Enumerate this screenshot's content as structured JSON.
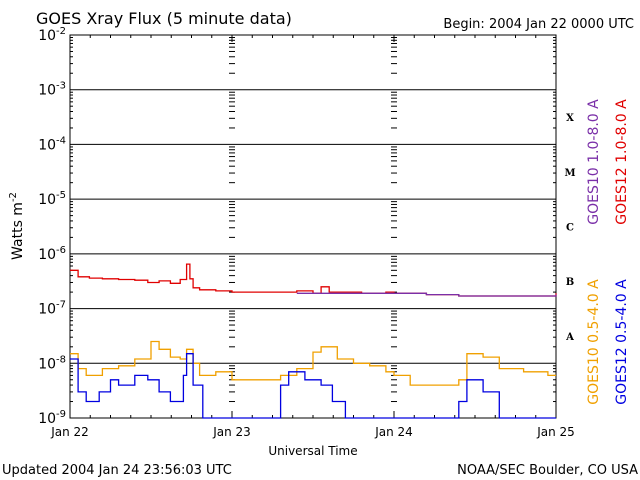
{
  "chart_data": {
    "type": "line",
    "title": "GOES Xray Flux (5 minute data)",
    "begin_label": "Begin:  2004 Jan 22 0000 UTC",
    "xlabel": "Universal Time",
    "ylabel": "Watts m",
    "ylabel_exp": "-2",
    "y_scale": "log",
    "ylim": [
      1e-09,
      0.01
    ],
    "xlim": [
      "2004-01-22",
      "2004-01-25"
    ],
    "y_ticks": [
      {
        "base": "10",
        "exp": "-2"
      },
      {
        "base": "10",
        "exp": "-3"
      },
      {
        "base": "10",
        "exp": "-4"
      },
      {
        "base": "10",
        "exp": "-5"
      },
      {
        "base": "10",
        "exp": "-6"
      },
      {
        "base": "10",
        "exp": "-7"
      },
      {
        "base": "10",
        "exp": "-8"
      },
      {
        "base": "10",
        "exp": "-9"
      }
    ],
    "x_ticks": [
      "Jan 22",
      "Jan 23",
      "Jan 24",
      "Jan 25"
    ],
    "flare_classes": [
      "X",
      "M",
      "C",
      "B",
      "A"
    ],
    "grid": true,
    "legend_placement": "right, vertical",
    "series": [
      {
        "name": "GOES12 1.0-8.0 A",
        "color": "#e00000",
        "x_days": [
          0.0,
          0.05,
          0.12,
          0.2,
          0.3,
          0.4,
          0.48,
          0.55,
          0.62,
          0.68,
          0.72,
          0.74,
          0.76,
          0.8,
          0.9,
          1.0,
          1.2,
          1.4,
          1.5,
          1.55,
          1.6,
          1.7,
          1.8,
          1.95,
          2.0,
          2.2,
          2.4,
          2.6,
          2.8,
          2.95,
          3.0
        ],
        "values": [
          5e-07,
          3.8e-07,
          3.6e-07,
          3.5e-07,
          3.4e-07,
          3.3e-07,
          3e-07,
          3.2e-07,
          2.9e-07,
          3.4e-07,
          6.5e-07,
          3.5e-07,
          2.4e-07,
          2.2e-07,
          2.1e-07,
          2e-07,
          2e-07,
          2.1e-07,
          1.9e-07,
          2.5e-07,
          2e-07,
          2e-07,
          1.9e-07,
          2e-07,
          1.9e-07,
          1.8e-07,
          1.7e-07,
          1.7e-07,
          1.7e-07,
          1.7e-07,
          1.9e-07
        ]
      },
      {
        "name": "GOES10 1.0-8.0 A",
        "color": "#7a2fa8",
        "x_days": [
          1.4,
          1.6,
          1.8,
          2.0,
          2.2,
          2.4,
          2.6,
          2.8,
          3.0
        ],
        "values": [
          1.9e-07,
          1.9e-07,
          1.9e-07,
          1.9e-07,
          1.8e-07,
          1.7e-07,
          1.7e-07,
          1.7e-07,
          1.8e-07
        ]
      },
      {
        "name": "GOES10 0.5-4.0 A",
        "color": "#f0a000",
        "x_days": [
          0.0,
          0.05,
          0.1,
          0.2,
          0.3,
          0.4,
          0.5,
          0.55,
          0.62,
          0.68,
          0.72,
          0.76,
          0.8,
          0.9,
          1.0,
          1.1,
          1.2,
          1.3,
          1.4,
          1.5,
          1.55,
          1.65,
          1.75,
          1.85,
          1.95,
          2.0,
          2.1,
          2.2,
          2.3,
          2.4,
          2.45,
          2.55,
          2.65,
          2.8,
          2.95,
          3.0
        ],
        "values": [
          1.5e-08,
          8e-09,
          6e-09,
          8e-09,
          9e-09,
          1.2e-08,
          2.5e-08,
          1.8e-08,
          1.3e-08,
          1.2e-08,
          1.8e-08,
          1e-08,
          6e-09,
          7e-09,
          5e-09,
          5e-09,
          5e-09,
          6e-09,
          8e-09,
          1.6e-08,
          2e-08,
          1.2e-08,
          1e-08,
          9e-09,
          7e-09,
          6e-09,
          4e-09,
          4e-09,
          4e-09,
          5e-09,
          1.5e-08,
          1.3e-08,
          8e-09,
          7e-09,
          6e-09,
          6e-09
        ]
      },
      {
        "name": "GOES12 0.5-4.0 A",
        "color": "#0000e0",
        "x_days": [
          0.0,
          0.05,
          0.1,
          0.18,
          0.25,
          0.3,
          0.4,
          0.48,
          0.55,
          0.62,
          0.7,
          0.72,
          0.76,
          0.82,
          0.9,
          1.0,
          1.1,
          1.2,
          1.3,
          1.35,
          1.45,
          1.55,
          1.62,
          1.7,
          1.8,
          1.9,
          2.0,
          2.1,
          2.2,
          2.3,
          2.4,
          2.45,
          2.55,
          2.65,
          2.8,
          2.9,
          3.0
        ],
        "values": [
          1.2e-08,
          3e-09,
          2e-09,
          3e-09,
          5e-09,
          4e-09,
          6e-09,
          5e-09,
          3e-09,
          2e-09,
          6e-09,
          1.5e-08,
          4e-09,
          1e-09,
          1e-09,
          1e-09,
          1e-09,
          1e-09,
          4e-09,
          7e-09,
          5e-09,
          4e-09,
          2e-09,
          1e-09,
          1e-09,
          1e-09,
          1e-09,
          1e-09,
          1e-09,
          1e-09,
          2e-09,
          5e-09,
          3e-09,
          1e-09,
          1e-09,
          1e-09,
          1e-09
        ]
      }
    ]
  },
  "footer": {
    "updated": "Updated 2004 Jan 24 23:56:03 UTC",
    "credit": "NOAA/SEC Boulder, CO USA"
  }
}
